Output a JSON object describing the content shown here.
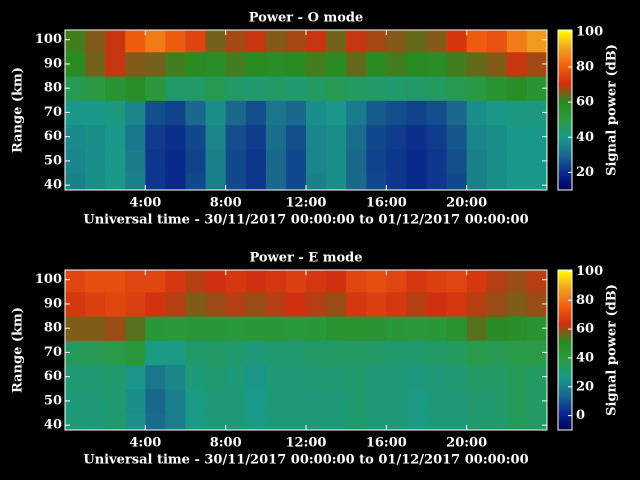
{
  "chart_data": [
    {
      "type": "heatmap",
      "title": "Power - O mode",
      "xlabel": "Universal time - 30/11/2017 00:00:00 to 01/12/2017 00:00:00",
      "ylabel": "Range (km)",
      "x_bins": [
        0,
        1,
        2,
        3,
        4,
        5,
        6,
        7,
        8,
        9,
        10,
        11,
        12,
        13,
        14,
        15,
        16,
        17,
        18,
        19,
        20,
        21,
        22,
        23,
        24
      ],
      "y_bins": [
        38,
        45,
        55,
        65,
        75,
        85,
        95,
        104
      ],
      "z": [
        [
          35,
          38,
          40,
          35,
          22,
          20,
          25,
          35,
          25,
          22,
          30,
          25,
          35,
          38,
          30,
          25,
          22,
          20,
          22,
          25,
          35,
          38,
          40,
          40
        ],
        [
          36,
          38,
          40,
          34,
          22,
          20,
          24,
          35,
          25,
          22,
          30,
          25,
          36,
          38,
          30,
          24,
          22,
          20,
          22,
          26,
          35,
          38,
          40,
          40
        ],
        [
          37,
          38,
          40,
          33,
          23,
          21,
          25,
          36,
          26,
          23,
          31,
          26,
          36,
          38,
          31,
          25,
          23,
          21,
          23,
          27,
          36,
          38,
          40,
          40
        ],
        [
          40,
          40,
          42,
          36,
          26,
          24,
          30,
          38,
          30,
          26,
          33,
          30,
          38,
          40,
          34,
          28,
          26,
          24,
          26,
          30,
          38,
          40,
          42,
          42
        ],
        [
          48,
          50,
          55,
          58,
          52,
          45,
          45,
          48,
          45,
          44,
          45,
          44,
          46,
          48,
          46,
          45,
          44,
          45,
          46,
          48,
          50,
          55,
          58,
          55
        ],
        [
          60,
          65,
          70,
          66,
          65,
          62,
          60,
          58,
          62,
          60,
          58,
          60,
          62,
          60,
          64,
          60,
          62,
          60,
          58,
          62,
          64,
          66,
          70,
          68
        ],
        [
          62,
          66,
          70,
          80,
          85,
          80,
          75,
          65,
          68,
          70,
          66,
          68,
          70,
          65,
          70,
          68,
          66,
          64,
          66,
          72,
          80,
          78,
          85,
          90
        ]
      ],
      "xlim": [
        0,
        24
      ],
      "ylim": [
        38,
        104
      ],
      "xticks": [
        {
          "value": 4,
          "label": "4:00"
        },
        {
          "value": 8,
          "label": "8:00"
        },
        {
          "value": 12,
          "label": "12:00"
        },
        {
          "value": 16,
          "label": "16:00"
        },
        {
          "value": 20,
          "label": "20:00"
        }
      ],
      "yticks": [
        40,
        50,
        60,
        70,
        80,
        90,
        100
      ],
      "colorbar": {
        "label": "Signal power (dB)",
        "lim": [
          10,
          101
        ],
        "ticks": [
          20,
          40,
          60,
          80,
          100
        ],
        "colors": [
          "#000050",
          "#0a2a8c",
          "#1a6a8c",
          "#1a9a8a",
          "#2a9a40",
          "#2a8a20",
          "#d03010",
          "#f06010",
          "#f0a020",
          "#ffff00"
        ]
      }
    },
    {
      "type": "heatmap",
      "title": "Power - E mode",
      "xlabel": "Universal time - 30/11/2017 00:00:00 to 01/12/2017 00:00:00",
      "ylabel": "Range (km)",
      "x_bins": [
        0,
        1,
        2,
        3,
        4,
        5,
        6,
        7,
        8,
        9,
        10,
        11,
        12,
        13,
        14,
        15,
        16,
        17,
        18,
        19,
        20,
        21,
        22,
        23,
        24
      ],
      "y_bins": [
        38,
        45,
        55,
        65,
        75,
        85,
        95,
        104
      ],
      "z": [
        [
          30,
          30,
          32,
          25,
          15,
          20,
          28,
          30,
          30,
          28,
          30,
          30,
          30,
          30,
          32,
          30,
          30,
          28,
          30,
          30,
          32,
          32,
          35,
          33
        ],
        [
          30,
          30,
          32,
          24,
          14,
          20,
          28,
          30,
          30,
          27,
          30,
          30,
          30,
          30,
          32,
          30,
          30,
          28,
          30,
          30,
          32,
          32,
          35,
          33
        ],
        [
          31,
          31,
          32,
          26,
          18,
          22,
          30,
          32,
          30,
          26,
          30,
          30,
          31,
          31,
          32,
          30,
          30,
          29,
          30,
          31,
          33,
          33,
          35,
          34
        ],
        [
          35,
          36,
          38,
          40,
          28,
          28,
          32,
          33,
          32,
          30,
          32,
          32,
          33,
          33,
          34,
          33,
          32,
          32,
          33,
          34,
          38,
          36,
          38,
          38
        ],
        [
          58,
          58,
          60,
          55,
          42,
          40,
          42,
          42,
          40,
          42,
          42,
          40,
          42,
          45,
          45,
          44,
          42,
          40,
          42,
          45,
          55,
          50,
          48,
          45
        ],
        [
          66,
          68,
          70,
          68,
          65,
          62,
          58,
          60,
          62,
          60,
          62,
          64,
          62,
          60,
          66,
          68,
          66,
          62,
          64,
          66,
          62,
          60,
          58,
          60
        ],
        [
          70,
          72,
          72,
          70,
          70,
          66,
          62,
          64,
          66,
          64,
          66,
          68,
          66,
          64,
          70,
          72,
          70,
          66,
          68,
          70,
          66,
          62,
          60,
          62
        ]
      ],
      "xlim": [
        0,
        24
      ],
      "ylim": [
        38,
        104
      ],
      "xticks": [
        {
          "value": 4,
          "label": "4:00"
        },
        {
          "value": 8,
          "label": "8:00"
        },
        {
          "value": 12,
          "label": "12:00"
        },
        {
          "value": 16,
          "label": "16:00"
        },
        {
          "value": 20,
          "label": "20:00"
        }
      ],
      "yticks": [
        40,
        50,
        60,
        70,
        80,
        90,
        100
      ],
      "colorbar": {
        "label": "Signal power (dB)",
        "lim": [
          -10,
          101
        ],
        "ticks": [
          0,
          20,
          40,
          60,
          80,
          100
        ],
        "colors": [
          "#000050",
          "#0a2a8c",
          "#1a6a8c",
          "#1a9a8a",
          "#2a9a40",
          "#2a8a20",
          "#d03010",
          "#f06010",
          "#f0a020",
          "#ffff00"
        ]
      }
    }
  ]
}
